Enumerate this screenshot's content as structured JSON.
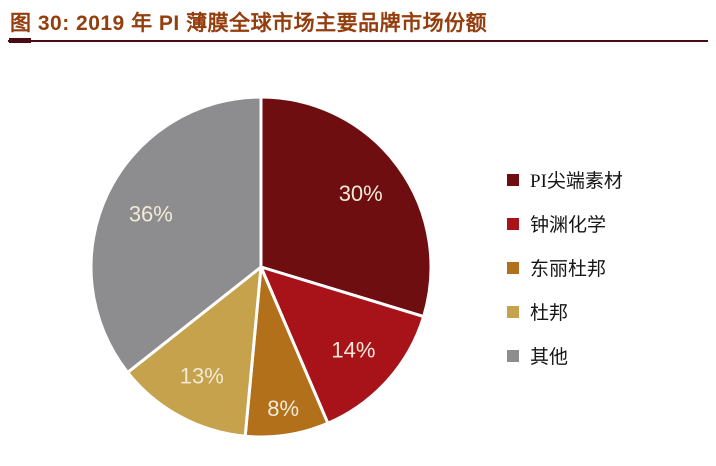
{
  "figure": {
    "title": "图 30: 2019 年 PI 薄膜全球市场主要品牌市场份额"
  },
  "chart_data": {
    "type": "pie",
    "title": "2019 年 PI 薄膜全球市场主要品牌市场份额",
    "categories": [
      "PI尖端素材",
      "钟渊化学",
      "东丽杜邦",
      "杜邦",
      "其他"
    ],
    "values": [
      30,
      14,
      8,
      13,
      36
    ],
    "labels": [
      "30%",
      "14%",
      "8%",
      "13%",
      "36%"
    ],
    "unit": "%",
    "colors": [
      "#6f0e11",
      "#a81219",
      "#b3701b",
      "#c5a24b",
      "#8d8d8f"
    ],
    "start_angle_deg": 0,
    "direction": "clockwise",
    "legend_position": "right",
    "slice_label_color": "#f2ead6",
    "separator_color": "#ffffff"
  },
  "styles": {
    "title_color": "#943d0d",
    "rule_color": "#4a0c12",
    "background": "#ffffff",
    "legend_text_color": "#161616"
  }
}
